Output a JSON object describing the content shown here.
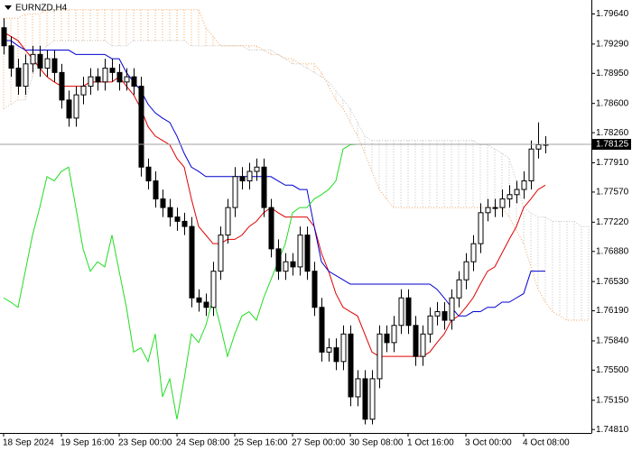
{
  "chart_data": {
    "type": "candlestick",
    "title": "EURNZD,H4",
    "categories": [
      "18 Sep 2024",
      null,
      null,
      null,
      null,
      null,
      null,
      null,
      "19 Sep 16:00",
      null,
      null,
      null,
      null,
      null,
      null,
      null,
      "23 Sep 00:00",
      null,
      null,
      null,
      null,
      null,
      null,
      null,
      "24 Sep 08:00",
      null,
      null,
      null,
      null,
      null,
      null,
      null,
      "25 Sep 16:00",
      null,
      null,
      null,
      null,
      null,
      null,
      null,
      "27 Sep 00:00",
      null,
      null,
      null,
      null,
      null,
      null,
      null,
      "30 Sep 08:00",
      null,
      null,
      null,
      null,
      null,
      null,
      null,
      "1 Oct 16:00",
      null,
      null,
      null,
      null,
      null,
      null,
      null,
      "3 Oct 00:00",
      null,
      null,
      null,
      null,
      null,
      null,
      null,
      "4 Oct 08:00",
      null,
      null,
      null,
      null,
      null,
      null,
      null,
      null,
      null
    ],
    "candles": {
      "up_color": "#ffffff",
      "down_color": "#000000",
      "open": [
        1.7948,
        1.7927,
        1.7901,
        1.788,
        1.7906,
        1.7917,
        1.7901,
        1.7912,
        1.7896,
        1.7864,
        1.7843,
        1.787,
        1.788,
        1.7891,
        1.7885,
        1.7901,
        1.7896,
        1.7885,
        1.7891,
        1.788,
        1.7786,
        1.777,
        1.7749,
        1.7739,
        1.7728,
        1.7723,
        1.7717,
        1.7634,
        1.7629,
        1.7623,
        1.7665,
        1.7707,
        1.7739,
        1.7775,
        1.777,
        1.7781,
        1.7786,
        1.7739,
        1.7691,
        1.7665,
        1.7676,
        1.767,
        1.7707,
        1.7665,
        1.7623,
        1.7571,
        1.7576,
        1.756,
        1.7592,
        1.7519,
        1.754,
        1.7493,
        1.754,
        1.7592,
        1.7582,
        1.7602,
        1.7634,
        1.7602,
        1.7566,
        1.7592,
        1.7613,
        1.7618,
        1.7608,
        1.7634,
        1.7655,
        1.7676,
        1.7697,
        1.7733,
        1.7739,
        1.7739,
        1.7749,
        1.7754,
        1.776,
        1.777,
        1.7807,
        1.7812,
        null,
        null,
        null,
        null,
        null,
        null
      ],
      "high": [
        1.7959,
        1.7938,
        1.7912,
        1.7917,
        1.7927,
        1.7927,
        1.7922,
        1.7922,
        1.7906,
        1.7875,
        1.788,
        1.7891,
        1.7901,
        1.7901,
        1.7912,
        1.7912,
        1.7906,
        1.7901,
        1.7901,
        1.7891,
        1.7796,
        1.7781,
        1.776,
        1.7749,
        1.7739,
        1.7733,
        1.7728,
        1.7644,
        1.7639,
        1.7676,
        1.7717,
        1.7749,
        1.7786,
        1.7786,
        1.7791,
        1.7796,
        1.7796,
        1.7749,
        1.7702,
        1.7686,
        1.7686,
        1.7717,
        1.7717,
        1.7676,
        1.7634,
        1.7587,
        1.7587,
        1.7602,
        1.7602,
        1.755,
        1.755,
        1.755,
        1.7602,
        1.7602,
        1.7613,
        1.7644,
        1.7644,
        1.7613,
        1.7602,
        1.7623,
        1.7629,
        1.7629,
        1.7644,
        1.7665,
        1.7686,
        1.7707,
        1.7744,
        1.7749,
        1.7749,
        1.776,
        1.7765,
        1.777,
        1.7781,
        1.7817,
        1.7838,
        1.7822,
        null,
        null,
        null,
        null,
        null,
        null
      ],
      "low": [
        1.7917,
        1.7891,
        1.787,
        1.787,
        1.7896,
        1.7891,
        1.7891,
        1.7885,
        1.7854,
        1.7833,
        1.7833,
        1.7859,
        1.787,
        1.7875,
        1.7875,
        1.7885,
        1.7875,
        1.7875,
        1.787,
        1.7775,
        1.776,
        1.7739,
        1.7728,
        1.7717,
        1.7712,
        1.7707,
        1.7623,
        1.7618,
        1.7613,
        1.7613,
        1.7655,
        1.7697,
        1.7728,
        1.776,
        1.776,
        1.777,
        1.7728,
        1.7681,
        1.7655,
        1.7655,
        1.766,
        1.766,
        1.7655,
        1.7613,
        1.756,
        1.756,
        1.755,
        1.755,
        1.7508,
        1.7508,
        1.7487,
        1.7487,
        1.7529,
        1.7571,
        1.7571,
        1.7592,
        1.7592,
        1.7555,
        1.7555,
        1.7582,
        1.7602,
        1.7597,
        1.7597,
        1.7623,
        1.7644,
        1.7665,
        1.7686,
        1.7723,
        1.7728,
        1.7728,
        1.7739,
        1.7744,
        1.7749,
        1.776,
        1.7796,
        1.7802,
        null,
        null,
        null,
        null,
        null,
        null
      ],
      "close": [
        1.7927,
        1.7901,
        1.788,
        1.7906,
        1.7917,
        1.7901,
        1.7912,
        1.7896,
        1.7864,
        1.7843,
        1.787,
        1.788,
        1.7891,
        1.7885,
        1.7901,
        1.7896,
        1.7885,
        1.7891,
        1.788,
        1.7786,
        1.777,
        1.7749,
        1.7739,
        1.7728,
        1.7723,
        1.7717,
        1.7634,
        1.7629,
        1.7623,
        1.7665,
        1.7707,
        1.7739,
        1.7775,
        1.777,
        1.7781,
        1.7786,
        1.7739,
        1.7691,
        1.7665,
        1.7676,
        1.767,
        1.7707,
        1.7665,
        1.7623,
        1.7571,
        1.7576,
        1.756,
        1.7592,
        1.7519,
        1.754,
        1.7493,
        1.754,
        1.7592,
        1.7582,
        1.7602,
        1.7634,
        1.7602,
        1.7566,
        1.7592,
        1.7613,
        1.7618,
        1.7608,
        1.7634,
        1.7655,
        1.7676,
        1.7697,
        1.7733,
        1.7739,
        1.7739,
        1.7749,
        1.7754,
        1.776,
        1.777,
        1.7807,
        1.7812,
        1.78125,
        null,
        null,
        null,
        null,
        null,
        null
      ]
    },
    "cloud": [
      {
        "color": "#c0c0c0",
        "values": [
          1.7854,
          1.7859,
          1.7864,
          1.7864,
          1.7891,
          1.7917,
          1.7927,
          1.7933,
          1.7933,
          1.7933,
          1.7933,
          1.7933,
          1.7933,
          1.7933,
          1.7933,
          1.7927,
          1.7927,
          1.7927,
          1.7933,
          1.7933,
          1.7933,
          1.7933,
          1.7933,
          1.7933,
          1.7933,
          1.7933,
          1.7927,
          1.7927,
          1.7927,
          1.7927,
          1.7927,
          1.7927,
          1.7927,
          1.7927,
          1.7922,
          1.7922,
          1.7922,
          1.7922,
          1.7917,
          1.7912,
          1.7906,
          1.7906,
          1.7901,
          1.7896,
          1.7891,
          1.7885,
          1.7875,
          1.7864,
          1.7854,
          1.7838,
          1.7822,
          1.7817,
          1.7817,
          1.7817,
          1.7817,
          1.7817,
          1.7817,
          1.7817,
          1.7817,
          1.7817,
          1.7817,
          1.7817,
          1.7817,
          1.7817,
          1.7817,
          1.7817,
          1.7812,
          1.7812,
          1.7807,
          1.7802,
          1.7796,
          1.777,
          1.7739,
          1.7733,
          1.7728,
          1.7728,
          1.7723,
          1.7723,
          1.7723,
          1.7723,
          1.7717,
          1.7717
        ]
      },
      {
        "color": "#f4a460",
        "values": [
          1.7959,
          1.7959,
          1.7959,
          1.7964,
          1.7964,
          1.7964,
          1.7969,
          1.7969,
          1.7969,
          1.7969,
          1.7969,
          1.7969,
          1.7969,
          1.7969,
          1.7969,
          1.7969,
          1.7969,
          1.7969,
          1.7969,
          1.7969,
          1.7969,
          1.7969,
          1.7969,
          1.7969,
          1.7969,
          1.7969,
          1.7969,
          1.7969,
          1.7948,
          1.7938,
          1.7927,
          1.7927,
          1.7927,
          1.7927,
          1.7927,
          1.7927,
          1.7922,
          1.7917,
          1.7917,
          1.7912,
          1.7912,
          1.7906,
          1.7906,
          1.7906,
          1.7896,
          1.788,
          1.7864,
          1.7854,
          1.7838,
          1.7822,
          1.7802,
          1.7781,
          1.776,
          1.7749,
          1.7739,
          1.7739,
          1.7739,
          1.7739,
          1.7739,
          1.7739,
          1.7739,
          1.7739,
          1.7739,
          1.7739,
          1.7739,
          1.7739,
          1.7739,
          1.7739,
          1.7739,
          1.7739,
          1.7728,
          1.7712,
          1.7697,
          1.767,
          1.7644,
          1.7629,
          1.7618,
          1.7613,
          1.7608,
          1.7608,
          1.7608,
          1.7608
        ]
      }
    ],
    "series": [
      {
        "color": "#e00000",
        "values": [
          1.7943,
          1.7938,
          1.7933,
          1.7922,
          1.7912,
          1.7901,
          1.7891,
          1.7885,
          1.788,
          1.788,
          1.788,
          1.788,
          1.7885,
          1.7885,
          1.7885,
          1.7885,
          1.7891,
          1.788,
          1.787,
          1.7854,
          1.7833,
          1.7822,
          1.7817,
          1.7812,
          1.7796,
          1.7786,
          1.7749,
          1.7717,
          1.7707,
          1.7697,
          1.7697,
          1.7702,
          1.7702,
          1.7707,
          1.7717,
          1.7723,
          1.7733,
          1.7739,
          1.7733,
          1.7728,
          1.7728,
          1.7728,
          1.7728,
          1.7717,
          1.7686,
          1.7665,
          1.7639,
          1.7623,
          1.7618,
          1.7613,
          1.7592,
          1.7571,
          1.7566,
          1.7566,
          1.7566,
          1.7566,
          1.7566,
          1.7566,
          1.7566,
          1.7571,
          1.7582,
          1.7592,
          1.7608,
          1.7613,
          1.7623,
          1.7634,
          1.765,
          1.7665,
          1.767,
          1.7686,
          1.7702,
          1.7717,
          1.7739,
          1.7749,
          1.776,
          1.7765,
          null,
          null,
          null,
          null,
          null,
          null
        ]
      },
      {
        "color": "#0000d0",
        "values": [
          1.7933,
          1.7933,
          1.7927,
          1.7922,
          1.7922,
          1.7922,
          1.7922,
          1.7922,
          1.7922,
          1.7922,
          1.7917,
          1.7917,
          1.7917,
          1.7917,
          1.7917,
          1.7912,
          1.7912,
          1.7896,
          1.7885,
          1.7875,
          1.7859,
          1.7849,
          1.7843,
          1.7838,
          1.7822,
          1.7802,
          1.7786,
          1.7781,
          1.7775,
          1.7775,
          1.7775,
          1.7775,
          1.7775,
          1.7775,
          1.7775,
          1.7775,
          1.7775,
          1.7775,
          1.777,
          1.7765,
          1.7765,
          1.776,
          1.776,
          1.7717,
          1.7676,
          1.7665,
          1.766,
          1.7655,
          1.765,
          1.765,
          1.765,
          1.765,
          1.765,
          1.765,
          1.765,
          1.765,
          1.765,
          1.765,
          1.765,
          1.765,
          1.7644,
          1.7634,
          1.7623,
          1.7613,
          1.7613,
          1.7618,
          1.7618,
          1.7623,
          1.7623,
          1.7629,
          1.7629,
          1.7634,
          1.7639,
          1.7665,
          1.7665,
          1.7665,
          null,
          null,
          null,
          null,
          null,
          null
        ]
      },
      {
        "color": "#22dd22",
        "values": [
          1.7634,
          1.7629,
          1.7623,
          1.7665,
          1.7707,
          1.7739,
          1.7775,
          1.777,
          1.7781,
          1.7786,
          1.7739,
          1.7691,
          1.7665,
          1.7676,
          1.767,
          1.7707,
          1.7665,
          1.7623,
          1.7571,
          1.7576,
          1.756,
          1.7592,
          1.7519,
          1.754,
          1.7493,
          1.754,
          1.7592,
          1.7582,
          1.7602,
          1.7634,
          1.7602,
          1.7566,
          1.7592,
          1.7613,
          1.7618,
          1.7608,
          1.7634,
          1.7655,
          1.7676,
          1.7697,
          1.7733,
          1.7739,
          1.7739,
          1.7749,
          1.7754,
          1.776,
          1.777,
          1.7807,
          1.7812,
          1.78125,
          null,
          null,
          null,
          null,
          null,
          null,
          null,
          null,
          null,
          null,
          null,
          null,
          null,
          null,
          null,
          null,
          null,
          null,
          null,
          null,
          null,
          null,
          null,
          null,
          null,
          null,
          null,
          null,
          null,
          null,
          null,
          null
        ]
      }
    ],
    "ylim": [
      1.7477,
      1.7975
    ],
    "yticks": [
      {
        "value": 1.7481,
        "label": "1.74810"
      },
      {
        "value": 1.7515,
        "label": "1.75150"
      },
      {
        "value": 1.755,
        "label": "1.75500"
      },
      {
        "value": 1.7584,
        "label": "1.75840"
      },
      {
        "value": 1.7619,
        "label": "1.76190"
      },
      {
        "value": 1.7653,
        "label": "1.76530"
      },
      {
        "value": 1.7688,
        "label": "1.76880"
      },
      {
        "value": 1.7722,
        "label": "1.77220"
      },
      {
        "value": 1.7757,
        "label": "1.77570"
      },
      {
        "value": 1.7791,
        "label": "1.77910"
      },
      {
        "value": 1.7826,
        "label": "1.78260"
      },
      {
        "value": 1.786,
        "label": "1.78600"
      },
      {
        "value": 1.7895,
        "label": "1.78950"
      },
      {
        "value": 1.7929,
        "label": "1.79290"
      },
      {
        "value": 1.7964,
        "label": "1.79640"
      }
    ],
    "grid": false
  }
}
